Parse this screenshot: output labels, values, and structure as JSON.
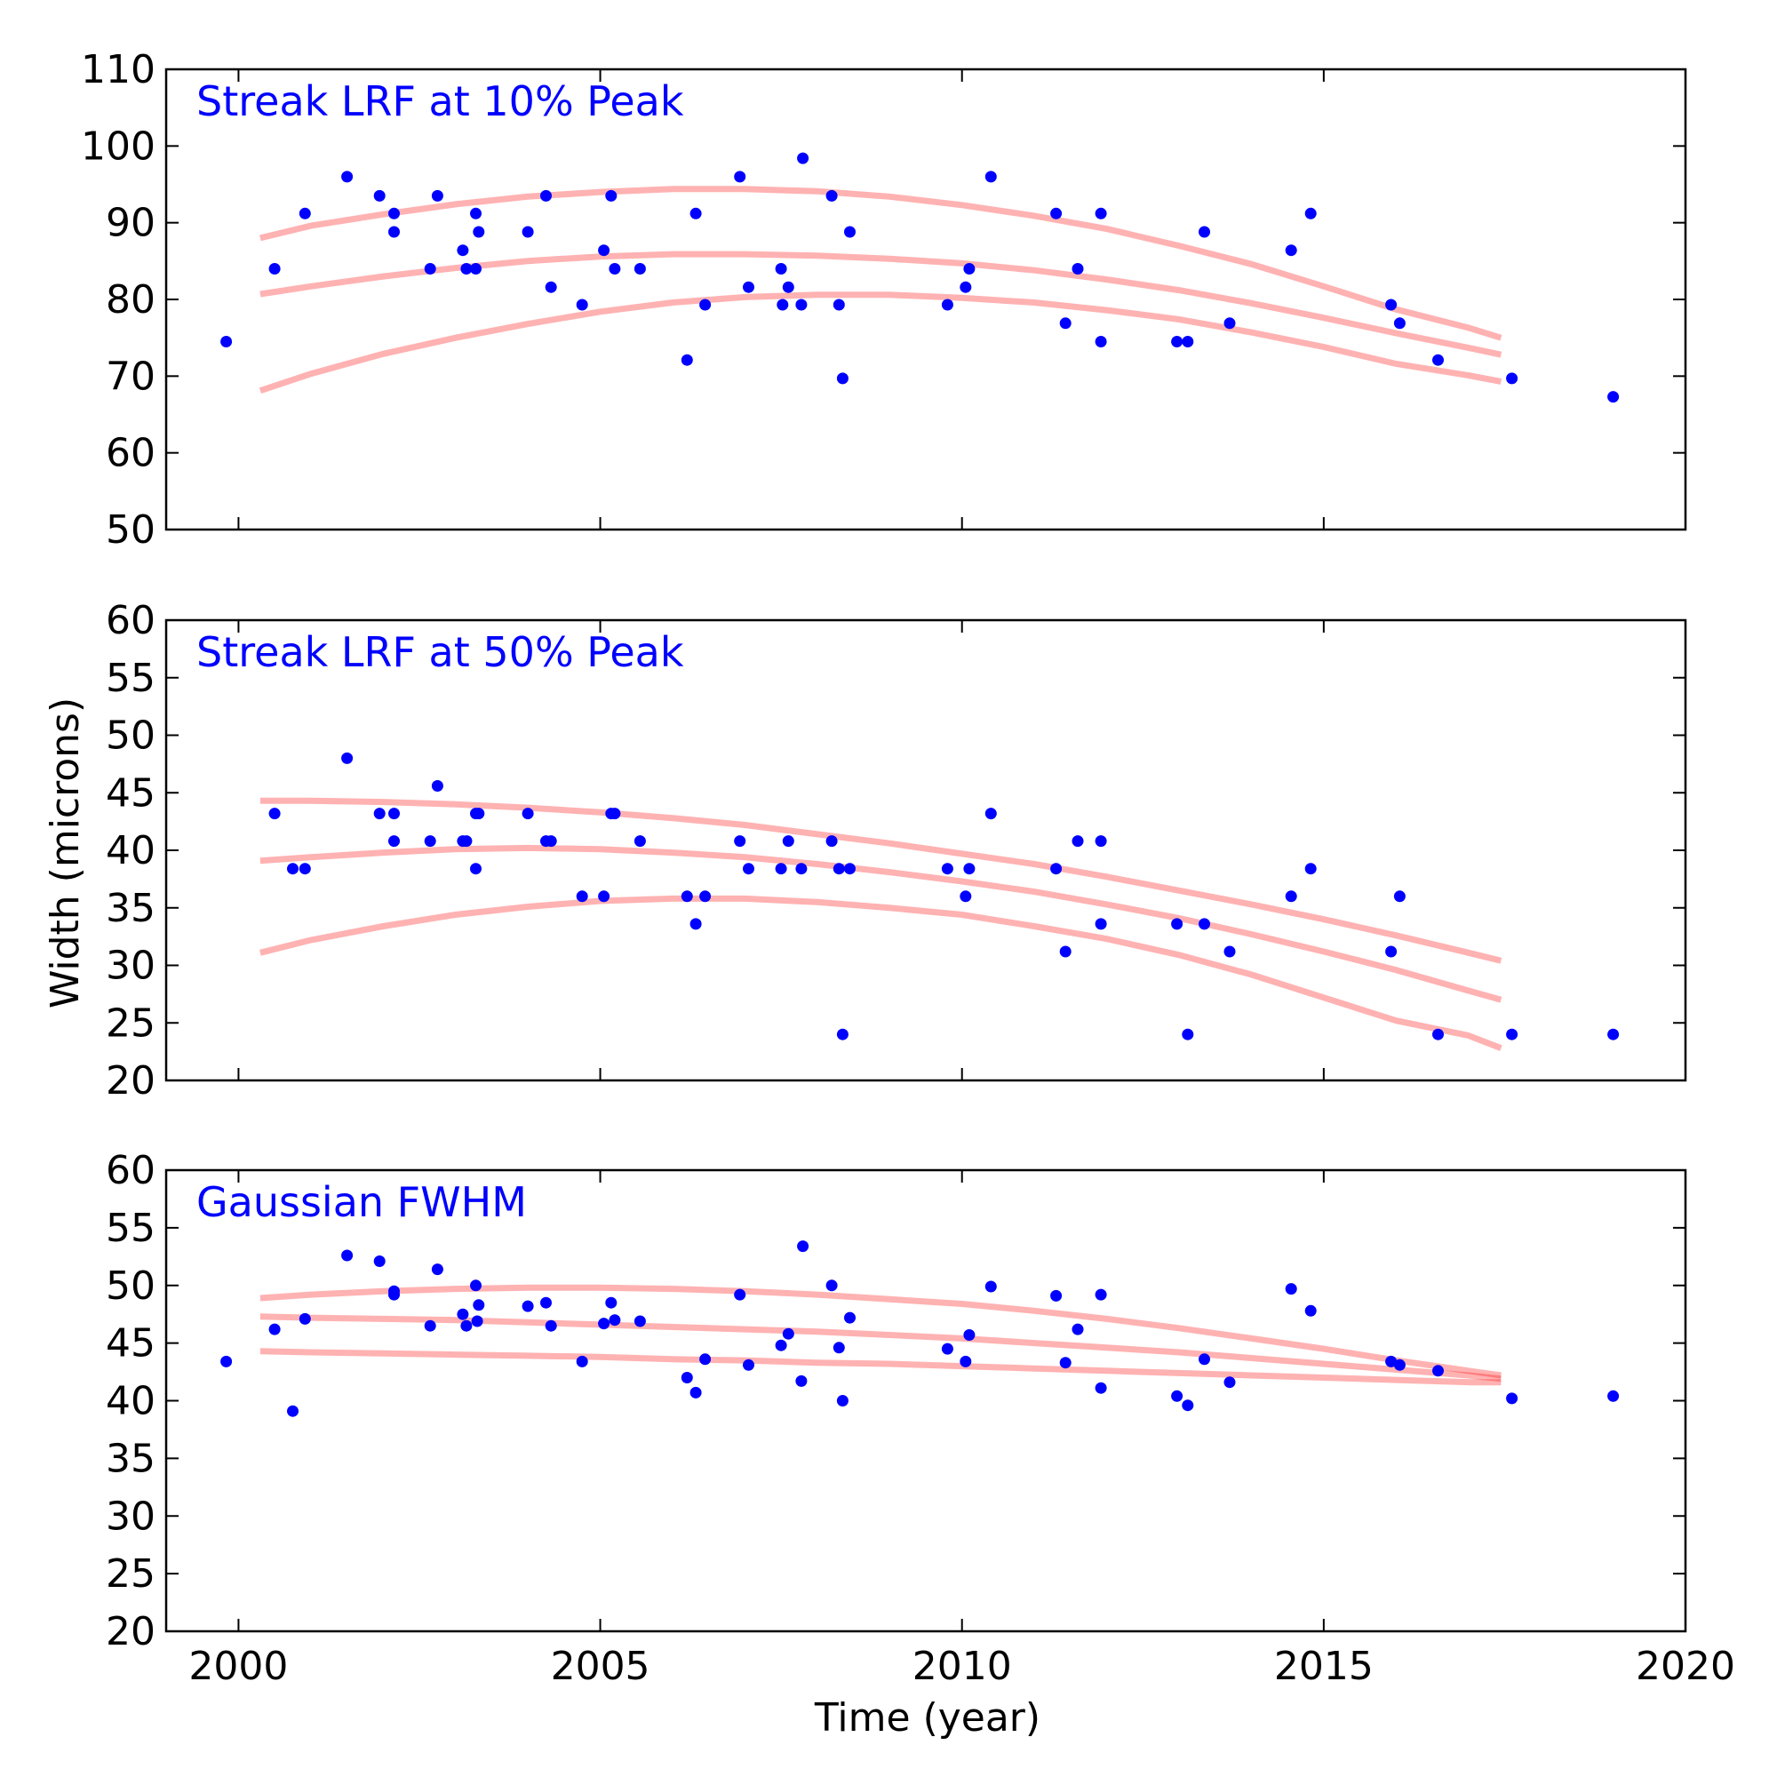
{
  "chart_data": {
    "type": "scatter",
    "xlabel": "Time (year)",
    "ylabel": "Width (microns)",
    "xlim": [
      1999,
      2020
    ],
    "xticks": [
      2000,
      2005,
      2010,
      2015,
      2020
    ],
    "colors": {
      "points": "#0000ff",
      "fit": "#ff0000",
      "title": "#0000ff"
    },
    "grid": false,
    "panels": [
      {
        "title": "Streak LRF at 10% Peak",
        "ylim": [
          50,
          110
        ],
        "yticks": [
          50,
          60,
          70,
          80,
          90,
          100,
          110
        ],
        "points": [
          [
            1999.83,
            74.5
          ],
          [
            2000.5,
            84
          ],
          [
            2000.92,
            91.2
          ],
          [
            2001.5,
            96
          ],
          [
            2001.95,
            93.5
          ],
          [
            2002.15,
            91.2
          ],
          [
            2002.15,
            88.8
          ],
          [
            2002.65,
            84
          ],
          [
            2002.75,
            93.5
          ],
          [
            2003.1,
            86.4
          ],
          [
            2003.15,
            84
          ],
          [
            2003.28,
            84
          ],
          [
            2003.28,
            91.2
          ],
          [
            2003.32,
            88.8
          ],
          [
            2004.0,
            88.8
          ],
          [
            2004.25,
            93.5
          ],
          [
            2004.32,
            81.6
          ],
          [
            2004.75,
            79.3
          ],
          [
            2005.05,
            86.4
          ],
          [
            2005.15,
            93.5
          ],
          [
            2005.2,
            84
          ],
          [
            2005.55,
            84
          ],
          [
            2006.2,
            72.1
          ],
          [
            2006.32,
            91.2
          ],
          [
            2006.45,
            79.3
          ],
          [
            2006.93,
            96
          ],
          [
            2007.05,
            81.6
          ],
          [
            2007.5,
            84
          ],
          [
            2007.52,
            79.3
          ],
          [
            2007.6,
            81.6
          ],
          [
            2007.78,
            79.3
          ],
          [
            2007.8,
            98.4
          ],
          [
            2008.2,
            93.5
          ],
          [
            2008.3,
            79.3
          ],
          [
            2008.35,
            69.7
          ],
          [
            2008.45,
            88.8
          ],
          [
            2009.8,
            79.3
          ],
          [
            2010.05,
            81.6
          ],
          [
            2010.1,
            84
          ],
          [
            2010.4,
            96
          ],
          [
            2011.3,
            91.2
          ],
          [
            2011.43,
            76.9
          ],
          [
            2011.6,
            84
          ],
          [
            2011.92,
            91.2
          ],
          [
            2011.92,
            74.5
          ],
          [
            2012.97,
            74.5
          ],
          [
            2013.12,
            74.5
          ],
          [
            2013.35,
            88.8
          ],
          [
            2013.7,
            76.9
          ],
          [
            2014.55,
            86.4
          ],
          [
            2014.82,
            91.2
          ],
          [
            2015.93,
            79.3
          ],
          [
            2016.05,
            76.9
          ],
          [
            2016.58,
            72.1
          ],
          [
            2017.6,
            69.7
          ],
          [
            2019.0,
            67.3
          ]
        ],
        "fit_lines": [
          {
            "x": [
              2000.3,
              2001,
              2002,
              2003,
              2004,
              2005,
              2006,
              2007,
              2008,
              2009,
              2010,
              2011,
              2012,
              2013,
              2014,
              2015,
              2016,
              2017,
              2017.45
            ],
            "y": [
              88.0,
              89.6,
              91.1,
              92.4,
              93.4,
              94.0,
              94.4,
              94.4,
              94.1,
              93.4,
              92.3,
              90.9,
              89.2,
              87.0,
              84.6,
              81.7,
              78.7,
              76.3,
              75.0
            ]
          },
          {
            "x": [
              2000.3,
              2001,
              2002,
              2003,
              2004,
              2005,
              2006,
              2007,
              2008,
              2009,
              2010,
              2011,
              2012,
              2013,
              2014,
              2015,
              2016,
              2017,
              2017.45
            ],
            "y": [
              80.7,
              81.7,
              83.0,
              84.1,
              85.0,
              85.6,
              85.9,
              85.9,
              85.7,
              85.3,
              84.7,
              83.8,
              82.6,
              81.2,
              79.5,
              77.6,
              75.6,
              73.7,
              72.8
            ]
          },
          {
            "x": [
              2000.3,
              2001,
              2002,
              2003,
              2004,
              2005,
              2006,
              2007,
              2008,
              2009,
              2010,
              2011,
              2012,
              2013,
              2014,
              2015,
              2016,
              2017,
              2017.45
            ],
            "y": [
              68.1,
              70.3,
              72.9,
              75.0,
              76.8,
              78.4,
              79.6,
              80.3,
              80.6,
              80.6,
              80.2,
              79.6,
              78.6,
              77.4,
              75.7,
              73.8,
              71.6,
              70.1,
              69.3
            ]
          }
        ]
      },
      {
        "title": "Streak LRF at 50% Peak",
        "ylim": [
          20,
          60
        ],
        "yticks": [
          20,
          25,
          30,
          35,
          40,
          45,
          50,
          55,
          60
        ],
        "points": [
          [
            2000.5,
            43.2
          ],
          [
            2000.75,
            38.4
          ],
          [
            2000.92,
            38.4
          ],
          [
            2001.5,
            48
          ],
          [
            2001.95,
            43.2
          ],
          [
            2002.15,
            43.2
          ],
          [
            2002.15,
            40.8
          ],
          [
            2002.65,
            40.8
          ],
          [
            2002.75,
            45.6
          ],
          [
            2003.1,
            40.8
          ],
          [
            2003.15,
            40.8
          ],
          [
            2003.28,
            43.2
          ],
          [
            2003.28,
            38.4
          ],
          [
            2003.32,
            43.2
          ],
          [
            2004.0,
            43.2
          ],
          [
            2004.25,
            40.8
          ],
          [
            2004.32,
            40.8
          ],
          [
            2004.75,
            36
          ],
          [
            2005.05,
            36
          ],
          [
            2005.15,
            43.2
          ],
          [
            2005.2,
            43.2
          ],
          [
            2005.55,
            40.8
          ],
          [
            2006.2,
            36
          ],
          [
            2006.32,
            33.6
          ],
          [
            2006.45,
            36
          ],
          [
            2006.93,
            40.8
          ],
          [
            2007.05,
            38.4
          ],
          [
            2007.5,
            38.4
          ],
          [
            2007.6,
            40.8
          ],
          [
            2007.78,
            38.4
          ],
          [
            2008.2,
            40.8
          ],
          [
            2008.3,
            38.4
          ],
          [
            2008.35,
            24
          ],
          [
            2008.45,
            38.4
          ],
          [
            2009.8,
            38.4
          ],
          [
            2010.05,
            36
          ],
          [
            2010.1,
            38.4
          ],
          [
            2010.4,
            43.2
          ],
          [
            2011.3,
            38.4
          ],
          [
            2011.43,
            31.2
          ],
          [
            2011.6,
            40.8
          ],
          [
            2011.92,
            40.8
          ],
          [
            2011.92,
            33.6
          ],
          [
            2012.97,
            33.6
          ],
          [
            2013.12,
            24
          ],
          [
            2013.35,
            33.6
          ],
          [
            2013.7,
            31.2
          ],
          [
            2014.55,
            36
          ],
          [
            2014.82,
            38.4
          ],
          [
            2015.93,
            31.2
          ],
          [
            2016.05,
            36
          ],
          [
            2016.58,
            24
          ],
          [
            2017.6,
            24
          ],
          [
            2019.0,
            24
          ]
        ],
        "fit_lines": [
          {
            "x": [
              2000.3,
              2001,
              2002,
              2003,
              2004,
              2005,
              2006,
              2007,
              2008,
              2009,
              2010,
              2011,
              2012,
              2013,
              2014,
              2015,
              2016,
              2017,
              2017.45
            ],
            "y": [
              44.3,
              44.3,
              44.2,
              44.0,
              43.7,
              43.3,
              42.8,
              42.2,
              41.4,
              40.6,
              39.7,
              38.8,
              37.7,
              36.5,
              35.3,
              34.0,
              32.6,
              31.1,
              30.4
            ]
          },
          {
            "x": [
              2000.3,
              2001,
              2002,
              2003,
              2004,
              2005,
              2006,
              2007,
              2008,
              2009,
              2010,
              2011,
              2012,
              2013,
              2014,
              2015,
              2016,
              2017,
              2017.45
            ],
            "y": [
              39.1,
              39.4,
              39.8,
              40.1,
              40.2,
              40.1,
              39.8,
              39.4,
              38.8,
              38.1,
              37.3,
              36.4,
              35.3,
              34.1,
              32.7,
              31.2,
              29.6,
              27.8,
              27.0
            ]
          },
          {
            "x": [
              2000.3,
              2001,
              2002,
              2003,
              2004,
              2005,
              2006,
              2007,
              2008,
              2009,
              2010,
              2011,
              2012,
              2013,
              2014,
              2015,
              2016,
              2017,
              2017.45
            ],
            "y": [
              31.1,
              32.2,
              33.4,
              34.4,
              35.1,
              35.6,
              35.8,
              35.8,
              35.5,
              35.0,
              34.4,
              33.4,
              32.3,
              30.9,
              29.2,
              27.2,
              25.2,
              23.9,
              22.8
            ]
          }
        ]
      },
      {
        "title": "Gaussian FWHM",
        "ylim": [
          20,
          60
        ],
        "yticks": [
          20,
          25,
          30,
          35,
          40,
          45,
          50,
          55,
          60
        ],
        "points": [
          [
            1999.83,
            43.4
          ],
          [
            2000.5,
            46.2
          ],
          [
            2000.75,
            39.1
          ],
          [
            2000.92,
            47.1
          ],
          [
            2001.5,
            52.6
          ],
          [
            2001.95,
            52.1
          ],
          [
            2002.15,
            49.5
          ],
          [
            2002.15,
            49.2
          ],
          [
            2002.65,
            46.5
          ],
          [
            2002.75,
            51.4
          ],
          [
            2003.1,
            47.5
          ],
          [
            2003.15,
            46.5
          ],
          [
            2003.28,
            50.0
          ],
          [
            2003.3,
            46.9
          ],
          [
            2003.32,
            48.3
          ],
          [
            2004.0,
            48.2
          ],
          [
            2004.25,
            48.5
          ],
          [
            2004.32,
            46.5
          ],
          [
            2004.75,
            43.4
          ],
          [
            2005.05,
            46.7
          ],
          [
            2005.15,
            48.5
          ],
          [
            2005.2,
            47.0
          ],
          [
            2005.55,
            46.9
          ],
          [
            2006.2,
            42.0
          ],
          [
            2006.32,
            40.7
          ],
          [
            2006.45,
            43.6
          ],
          [
            2006.93,
            49.2
          ],
          [
            2007.05,
            43.1
          ],
          [
            2007.5,
            44.8
          ],
          [
            2007.6,
            45.8
          ],
          [
            2007.78,
            41.7
          ],
          [
            2007.8,
            53.4
          ],
          [
            2008.2,
            50.0
          ],
          [
            2008.3,
            44.6
          ],
          [
            2008.35,
            40.0
          ],
          [
            2008.45,
            47.2
          ],
          [
            2009.8,
            44.5
          ],
          [
            2010.05,
            43.4
          ],
          [
            2010.1,
            45.7
          ],
          [
            2010.4,
            49.9
          ],
          [
            2011.3,
            49.1
          ],
          [
            2011.43,
            43.3
          ],
          [
            2011.6,
            46.2
          ],
          [
            2011.92,
            49.2
          ],
          [
            2011.92,
            41.1
          ],
          [
            2012.97,
            40.4
          ],
          [
            2013.12,
            39.6
          ],
          [
            2013.35,
            43.6
          ],
          [
            2013.7,
            41.6
          ],
          [
            2014.55,
            49.7
          ],
          [
            2014.82,
            47.8
          ],
          [
            2015.93,
            43.4
          ],
          [
            2016.05,
            43.1
          ],
          [
            2016.58,
            42.6
          ],
          [
            2017.6,
            40.2
          ],
          [
            2019.0,
            40.4
          ]
        ],
        "fit_lines": [
          {
            "x": [
              2000.3,
              2001,
              2002,
              2003,
              2004,
              2005,
              2006,
              2007,
              2008,
              2009,
              2010,
              2011,
              2012,
              2013,
              2014,
              2015,
              2016,
              2017,
              2017.45
            ],
            "y": [
              48.9,
              49.2,
              49.5,
              49.7,
              49.8,
              49.8,
              49.7,
              49.5,
              49.2,
              48.8,
              48.4,
              47.8,
              47.1,
              46.3,
              45.4,
              44.5,
              43.5,
              42.6,
              42.2
            ]
          },
          {
            "x": [
              2000.3,
              2001,
              2002,
              2003,
              2004,
              2005,
              2006,
              2007,
              2008,
              2009,
              2010,
              2011,
              2012,
              2013,
              2014,
              2015,
              2016,
              2017,
              2017.45
            ],
            "y": [
              47.3,
              47.2,
              47.1,
              47.0,
              46.8,
              46.6,
              46.4,
              46.2,
              46.0,
              45.7,
              45.4,
              45.0,
              44.6,
              44.2,
              43.7,
              43.2,
              42.7,
              42.2,
              41.9
            ]
          },
          {
            "x": [
              2000.3,
              2001,
              2002,
              2003,
              2004,
              2005,
              2006,
              2007,
              2008,
              2009,
              2010,
              2011,
              2012,
              2013,
              2014,
              2015,
              2016,
              2017,
              2017.45
            ],
            "y": [
              44.3,
              44.2,
              44.1,
              44.0,
              43.9,
              43.8,
              43.6,
              43.5,
              43.3,
              43.2,
              43.0,
              42.8,
              42.6,
              42.4,
              42.2,
              42.0,
              41.8,
              41.6,
              41.6
            ]
          }
        ]
      }
    ]
  }
}
